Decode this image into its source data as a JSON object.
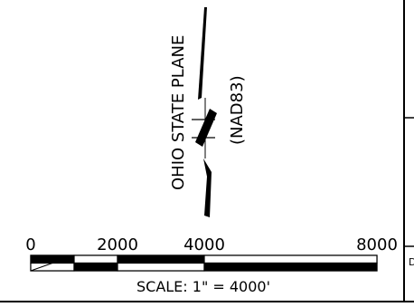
{
  "north_arrow": {
    "datum_label": "OHIO STATE PLANE",
    "datum_code": "(NAD83)"
  },
  "scale_bar": {
    "tick_labels": [
      "0",
      "2000",
      "4000",
      "8000"
    ],
    "scale_text": "SCALE: 1\" = 4000'"
  },
  "title_block": {
    "fragment": "D"
  }
}
